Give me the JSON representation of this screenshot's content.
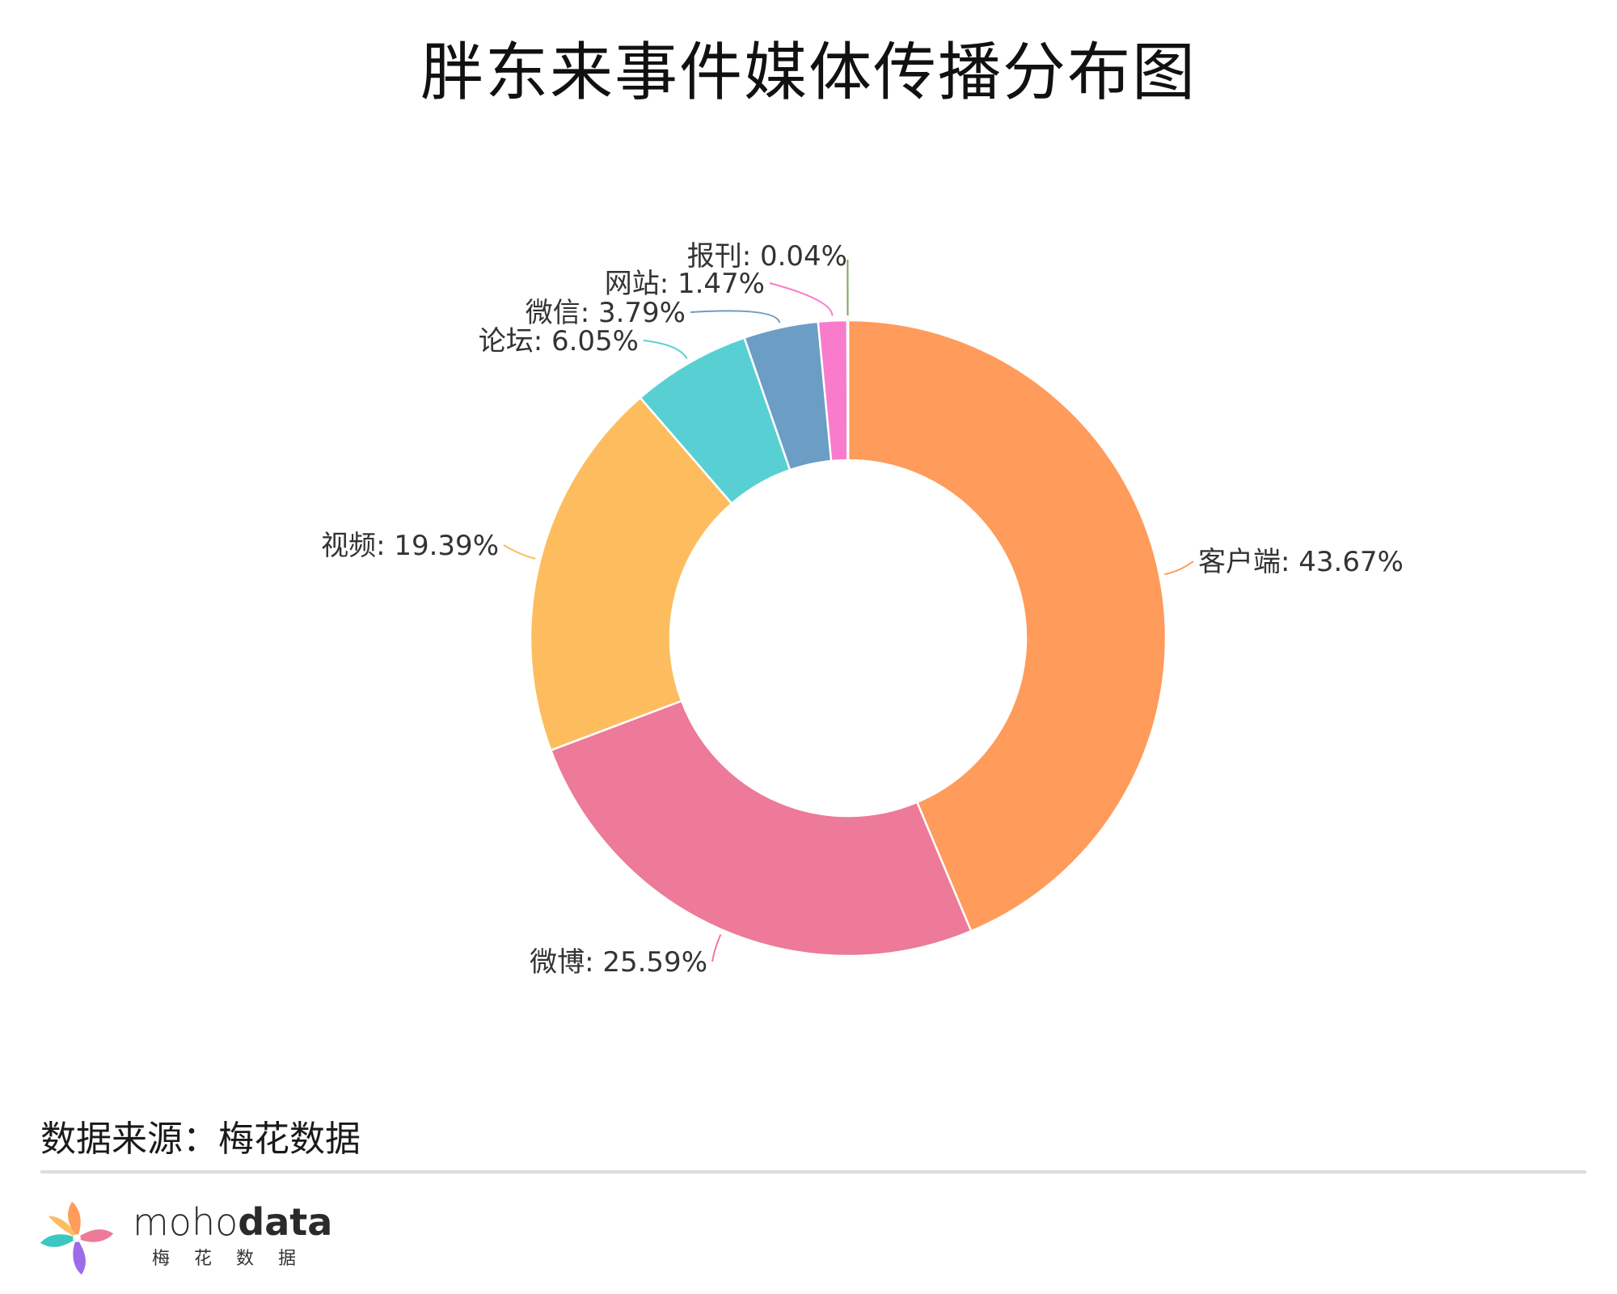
{
  "title": "胖东来事件媒体传播分布图",
  "chart_data": {
    "type": "pie",
    "donut": true,
    "title": "胖东来事件媒体传播分布图",
    "label_format": "{name}: {value}%",
    "slices": [
      {
        "name": "客户端",
        "value": 43.67,
        "color": "#FF9B5B"
      },
      {
        "name": "微博",
        "value": 25.59,
        "color": "#EC7A98"
      },
      {
        "name": "视频",
        "value": 19.39,
        "color": "#FDBD5F"
      },
      {
        "name": "论坛",
        "value": 6.05,
        "color": "#58D0D3"
      },
      {
        "name": "微信",
        "value": 3.79,
        "color": "#6C9DC5"
      },
      {
        "name": "网站",
        "value": 1.47,
        "color": "#F97BCB"
      },
      {
        "name": "报刊",
        "value": 0.04,
        "color": "#7BA35B"
      }
    ],
    "label_strings": [
      "客户端: 43.67%",
      "微博: 25.59%",
      "视频: 19.39%",
      "论坛: 6.05%",
      "微信: 3.79%",
      "网站: 1.47%",
      "报刊: 0.04%"
    ]
  },
  "source": "数据来源：梅花数据",
  "brand": {
    "name_light": "moho",
    "name_bold": "data",
    "subtitle": "梅花数据"
  }
}
